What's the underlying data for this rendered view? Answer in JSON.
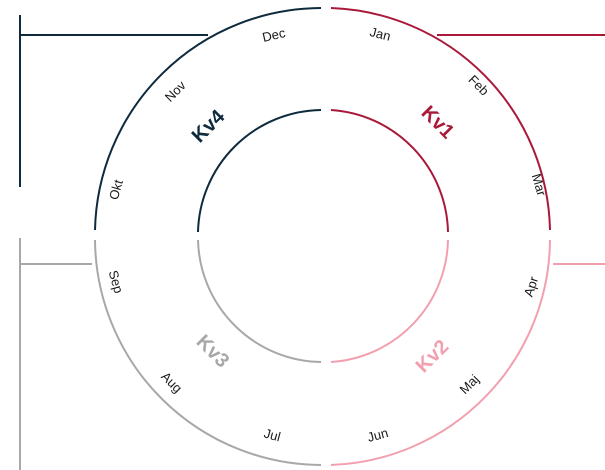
{
  "colors": {
    "kv1": "#a8193a",
    "kv2": "#f2a0b0",
    "kv3": "#a8a8a8",
    "kv4": "#0e2a3c",
    "text": "#1a1a1a"
  },
  "quarters": [
    {
      "key": "kv1",
      "label": "Kv1",
      "months": [
        "Jan",
        "Feb",
        "Mar"
      ]
    },
    {
      "key": "kv2",
      "label": "Kv2",
      "months": [
        "Apr",
        "Maj",
        "Jun"
      ]
    },
    {
      "key": "kv3",
      "label": "Kv3",
      "months": [
        "Jul",
        "Aug",
        "Sep"
      ]
    },
    {
      "key": "kv4",
      "label": "Kv4",
      "months": [
        "Okt",
        "Nov",
        "Dec"
      ]
    }
  ]
}
